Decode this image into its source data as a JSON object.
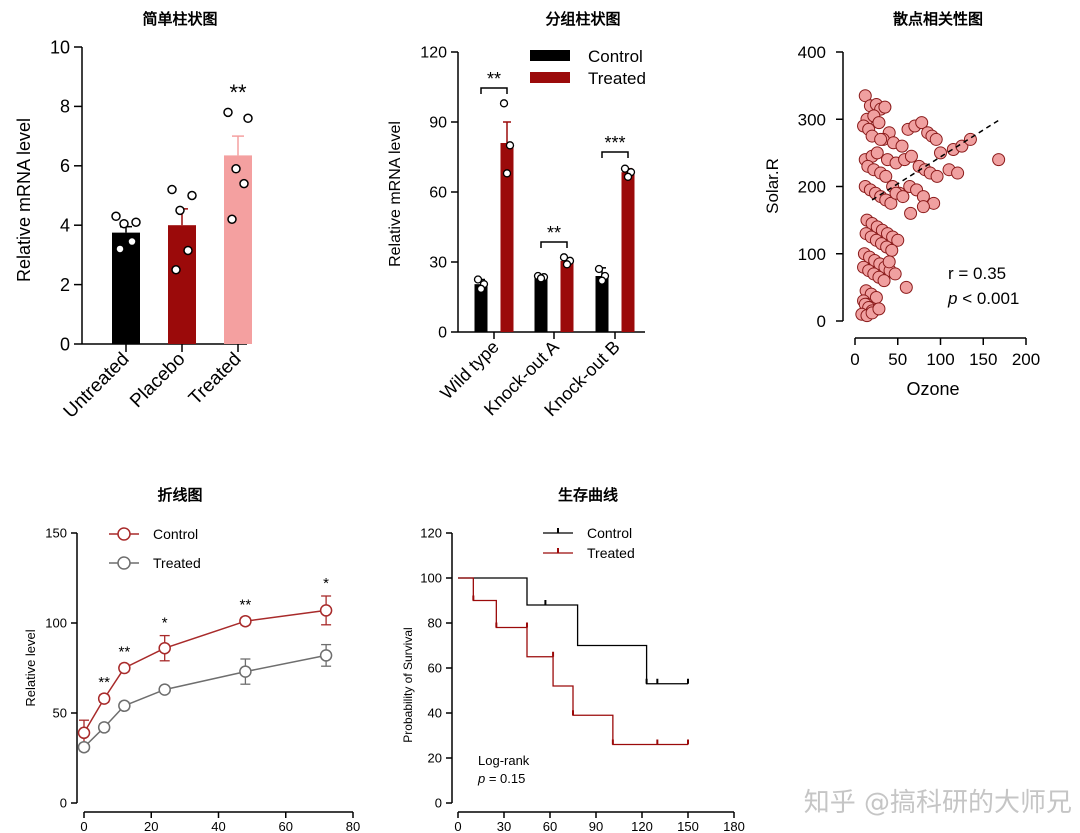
{
  "watermark": "知乎 @搞科研的大师兄",
  "chart_data": [
    {
      "id": "p1",
      "type": "bar",
      "title": "简单柱状图",
      "ylabel": "Relative mRNA level",
      "ylim": [
        0,
        10
      ],
      "yticks": [
        0,
        2,
        4,
        6,
        8,
        10
      ],
      "categories": [
        "Untreated",
        "Placebo",
        "Treated"
      ],
      "values": [
        3.75,
        4.0,
        6.35
      ],
      "errors": [
        0.2,
        0.55,
        0.65
      ],
      "colors": [
        "#000000",
        "#9b0a0a",
        "#f4a0a0"
      ],
      "points": [
        [
          4.3,
          4.1,
          4.05,
          3.45,
          3.2
        ],
        [
          5.2,
          5.0,
          4.5,
          3.15,
          2.5
        ],
        [
          7.8,
          7.6,
          5.9,
          5.4,
          4.2
        ]
      ],
      "annotations": [
        {
          "category": "Treated",
          "text": "**"
        }
      ]
    },
    {
      "id": "p2",
      "type": "bar",
      "title": "分组柱状图",
      "ylabel": "Relative mRNA level",
      "ylim": [
        0,
        120
      ],
      "yticks": [
        0,
        30,
        60,
        90,
        120
      ],
      "categories": [
        "Wild type",
        "Knock-out A",
        "Knock-out B"
      ],
      "legend_position": "top-right",
      "series": [
        {
          "name": "Control",
          "color": "#000000",
          "values": [
            20.5,
            23.5,
            24
          ],
          "errors": [
            2,
            0.5,
            3.5
          ],
          "points": [
            [
              22.5,
              20.5,
              18.5
            ],
            [
              24,
              23.5,
              23
            ],
            [
              27,
              24,
              22
            ]
          ]
        },
        {
          "name": "Treated",
          "color": "#9b0a0a",
          "values": [
            81,
            30.5,
            68.5
          ],
          "errors": [
            9,
            1,
            1.5
          ],
          "points": [
            [
              98,
              80,
              68
            ],
            [
              32,
              30.5,
              29
            ],
            [
              70,
              68.5,
              66.5
            ]
          ]
        }
      ],
      "annotations": [
        {
          "category": "Wild type",
          "text": "**"
        },
        {
          "category": "Knock-out A",
          "text": "**"
        },
        {
          "category": "Knock-out B",
          "text": "***"
        }
      ]
    },
    {
      "id": "p3",
      "type": "scatter",
      "title": "散点相关性图",
      "xlabel": "Ozone",
      "ylabel": "Solar.R",
      "xlim": [
        0,
        200
      ],
      "ylim": [
        0,
        400
      ],
      "xticks": [
        0,
        50,
        100,
        150,
        200
      ],
      "yticks": [
        0,
        100,
        200,
        300,
        400
      ],
      "r_text": "r = 0.35",
      "p_text": "p < 0.001",
      "p_italic": "p",
      "p_rest": " < 0.001",
      "fit_line": [
        [
          20,
          180
        ],
        [
          170,
          300
        ]
      ],
      "color": "#f0a0a0",
      "stroke": "#8a1a1a",
      "x": [
        12,
        18,
        25,
        30,
        35,
        14,
        22,
        28,
        40,
        10,
        16,
        20,
        33,
        45,
        55,
        62,
        70,
        78,
        85,
        90,
        95,
        100,
        115,
        125,
        135,
        168,
        12,
        20,
        26,
        38,
        48,
        58,
        66,
        75,
        82,
        88,
        96,
        110,
        120,
        15,
        22,
        30,
        36,
        44,
        52,
        64,
        72,
        80,
        92,
        12,
        18,
        24,
        30,
        36,
        42,
        48,
        56,
        14,
        20,
        26,
        32,
        38,
        44,
        50,
        13,
        19,
        25,
        31,
        37,
        43,
        60,
        11,
        17,
        23,
        29,
        35,
        41,
        47,
        10,
        16,
        22,
        28,
        34,
        13,
        19,
        25,
        10,
        14,
        18,
        22,
        12,
        16,
        20,
        8,
        14,
        20,
        28,
        40,
        65,
        80,
        30
      ],
      "y": [
        335,
        320,
        322,
        315,
        318,
        300,
        305,
        295,
        280,
        290,
        285,
        275,
        270,
        265,
        260,
        285,
        290,
        295,
        280,
        275,
        270,
        250,
        255,
        260,
        270,
        240,
        240,
        245,
        250,
        240,
        235,
        240,
        245,
        230,
        225,
        220,
        215,
        225,
        220,
        230,
        225,
        220,
        215,
        200,
        190,
        200,
        195,
        185,
        175,
        200,
        195,
        190,
        185,
        180,
        175,
        190,
        185,
        150,
        145,
        140,
        135,
        130,
        125,
        120,
        130,
        125,
        120,
        115,
        110,
        105,
        50,
        100,
        95,
        90,
        85,
        80,
        75,
        70,
        80,
        75,
        70,
        65,
        60,
        45,
        40,
        35,
        30,
        25,
        20,
        15,
        25,
        20,
        15,
        10,
        8,
        12,
        18,
        88,
        160,
        170,
        270
      ]
    },
    {
      "id": "p4",
      "type": "line",
      "title": "折线图",
      "ylabel": "Relative level",
      "xlim": [
        0,
        80
      ],
      "ylim": [
        0,
        150
      ],
      "xticks": [
        0,
        20,
        40,
        60,
        80
      ],
      "yticks": [
        0,
        50,
        100,
        150
      ],
      "legend_position": "top-left",
      "x": [
        0,
        6,
        12,
        24,
        48,
        72
      ],
      "series": [
        {
          "name": "Control",
          "color": "#a82a2a",
          "values": [
            39,
            58,
            75,
            86,
            101,
            107
          ],
          "errors": [
            7,
            2,
            2,
            7,
            2,
            8
          ]
        },
        {
          "name": "Treated",
          "color": "#6e6e6e",
          "values": [
            31,
            42,
            54,
            63,
            73,
            82
          ],
          "errors": [
            2,
            2,
            2,
            1,
            7,
            6
          ]
        }
      ],
      "annotations": [
        {
          "x": 6,
          "text": "**"
        },
        {
          "x": 12,
          "text": "**"
        },
        {
          "x": 24,
          "text": "*"
        },
        {
          "x": 48,
          "text": "**"
        },
        {
          "x": 72,
          "text": "*"
        }
      ]
    },
    {
      "id": "p5",
      "type": "line",
      "title": "生存曲线",
      "ylabel": "Probability of Survival",
      "xlim": [
        0,
        180
      ],
      "ylim": [
        0,
        120
      ],
      "xticks": [
        0,
        30,
        60,
        90,
        120,
        150,
        180
      ],
      "yticks": [
        0,
        20,
        40,
        60,
        80,
        100,
        120
      ],
      "legend_position": "top-right",
      "logrank_text": "Log-rank",
      "p_text": "p = 0.15",
      "p_italic": "p",
      "p_rest": " = 0.15",
      "series": [
        {
          "name": "Control",
          "color": "#000000",
          "steps": [
            [
              0,
              100
            ],
            [
              45,
              100
            ],
            [
              45,
              88
            ],
            [
              78,
              88
            ],
            [
              78,
              70
            ],
            [
              123,
              70
            ],
            [
              123,
              53
            ],
            [
              150,
              53
            ]
          ],
          "censor": [
            [
              57,
              88
            ],
            [
              123,
              53
            ],
            [
              130,
              53
            ],
            [
              150,
              53
            ]
          ]
        },
        {
          "name": "Treated",
          "color": "#9b0a0a",
          "steps": [
            [
              0,
              100
            ],
            [
              10,
              100
            ],
            [
              10,
              90
            ],
            [
              25,
              90
            ],
            [
              25,
              78
            ],
            [
              45,
              78
            ],
            [
              45,
              65
            ],
            [
              62,
              65
            ],
            [
              62,
              52
            ],
            [
              75,
              52
            ],
            [
              75,
              39
            ],
            [
              101,
              39
            ],
            [
              101,
              26
            ],
            [
              150,
              26
            ]
          ],
          "censor": [
            [
              10,
              90
            ],
            [
              25,
              78
            ],
            [
              45,
              78
            ],
            [
              62,
              65
            ],
            [
              75,
              39
            ],
            [
              101,
              26
            ],
            [
              130,
              26
            ],
            [
              150,
              26
            ]
          ]
        }
      ]
    }
  ]
}
